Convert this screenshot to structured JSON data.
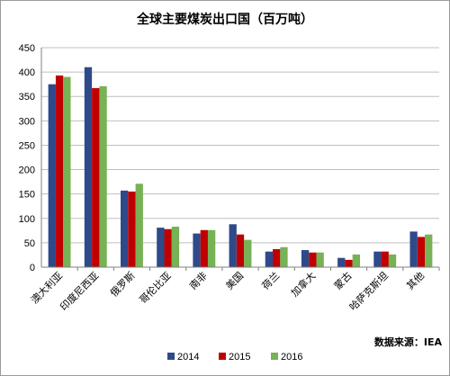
{
  "chart_data": {
    "type": "bar",
    "title": "全球主要煤炭出口国（百万吨）",
    "categories": [
      "澳大利亚",
      "印度尼西亚",
      "俄罗斯",
      "哥伦比亚",
      "南非",
      "美国",
      "荷兰",
      "加拿大",
      "蒙古",
      "哈萨克斯坦",
      "其他"
    ],
    "series": [
      {
        "name": "2014",
        "color": "#2e4a8b",
        "values": [
          375,
          410,
          157,
          81,
          69,
          88,
          32,
          35,
          19,
          32,
          73
        ]
      },
      {
        "name": "2015",
        "color": "#c00000",
        "values": [
          393,
          367,
          155,
          78,
          76,
          67,
          37,
          30,
          15,
          32,
          62
        ]
      },
      {
        "name": "2016",
        "color": "#77b255",
        "values": [
          390,
          371,
          171,
          83,
          76,
          56,
          41,
          30,
          26,
          26,
          67
        ]
      }
    ],
    "ylim": [
      0,
      450
    ],
    "yticks": [
      0,
      50,
      100,
      150,
      200,
      250,
      300,
      350,
      400,
      450
    ],
    "grid": true,
    "legend": "bottom",
    "source": "数据来源：IEA"
  }
}
